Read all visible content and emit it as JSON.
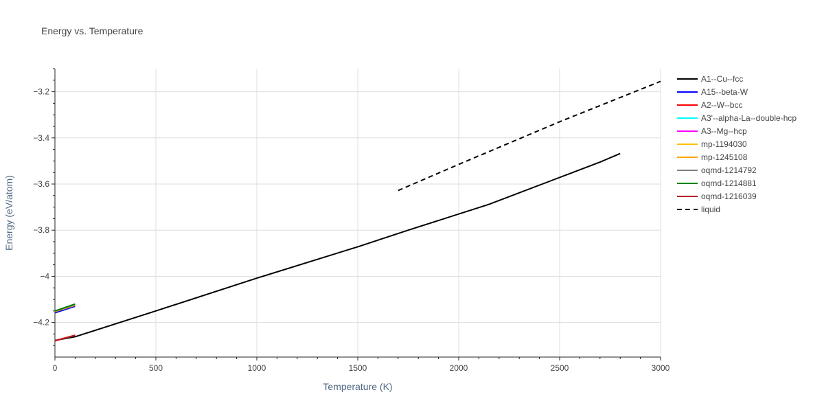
{
  "chart_data": {
    "type": "line",
    "title": "Energy vs. Temperature",
    "xlabel": "Temperature (K)",
    "ylabel": "Energy (eV/atom)",
    "xlim": [
      0,
      3000
    ],
    "ylim": [
      -4.35,
      -3.1
    ],
    "xticks": [
      0,
      500,
      1000,
      1500,
      2000,
      2500,
      3000
    ],
    "xtick_labels": [
      "0",
      "500",
      "1000",
      "1500",
      "2000",
      "2500",
      "3000"
    ],
    "yticks": [
      -4.2,
      -4.0,
      -3.8,
      -3.6,
      -3.4,
      -3.2
    ],
    "ytick_labels": [
      "−4.2",
      "−4",
      "−3.8",
      "−3.6",
      "−3.4",
      "−3.2"
    ],
    "grid": true,
    "legend_position": "right",
    "series": [
      {
        "name": "A1--Cu--fcc",
        "color": "#000000",
        "dash": "solid",
        "x": [
          0,
          100,
          500,
          1000,
          1500,
          1750,
          2150,
          2450,
          2700,
          2800
        ],
        "y": [
          -4.278,
          -4.262,
          -4.15,
          -4.008,
          -3.872,
          -3.8,
          -3.688,
          -3.588,
          -3.505,
          -3.468
        ]
      },
      {
        "name": "A15--beta-W",
        "color": "#0000ff",
        "dash": "solid",
        "x": [
          0,
          100
        ],
        "y": [
          -4.158,
          -4.13
        ]
      },
      {
        "name": "A2--W--bcc",
        "color": "#ff0000",
        "dash": "solid",
        "x": [
          0,
          100
        ],
        "y": [
          -4.279,
          -4.255
        ]
      },
      {
        "name": "A3'--alpha-La--double-hcp",
        "color": "#00ffff",
        "dash": "solid",
        "x": [
          0,
          100
        ],
        "y": [
          -4.15,
          -4.123
        ]
      },
      {
        "name": "A3--Mg--hcp",
        "color": "#ff00ff",
        "dash": "solid",
        "x": [
          0,
          100
        ],
        "y": [
          -4.151,
          -4.124
        ]
      },
      {
        "name": "mp-1194030",
        "color": "#ffbf00",
        "dash": "solid",
        "x": [
          0,
          100
        ],
        "y": [
          -4.152,
          -4.125
        ]
      },
      {
        "name": "mp-1245108",
        "color": "#ffa500",
        "dash": "solid",
        "x": [
          0,
          100
        ],
        "y": [
          -4.153,
          -4.126
        ]
      },
      {
        "name": "oqmd-1214792",
        "color": "#808080",
        "dash": "solid",
        "x": [
          0,
          100
        ],
        "y": [
          -4.151,
          -4.123
        ]
      },
      {
        "name": "oqmd-1214881",
        "color": "#008000",
        "dash": "solid",
        "x": [
          0,
          100
        ],
        "y": [
          -4.15,
          -4.12
        ]
      },
      {
        "name": "oqmd-1216039",
        "color": "#b22222",
        "dash": "solid",
        "x": [
          0,
          100
        ],
        "y": [
          -4.28,
          -4.256
        ]
      },
      {
        "name": "liquid",
        "color": "#000000",
        "dash": "dashed",
        "x": [
          1700,
          2000,
          2500,
          3000
        ],
        "y": [
          -3.628,
          -3.515,
          -3.33,
          -3.155
        ]
      }
    ]
  }
}
